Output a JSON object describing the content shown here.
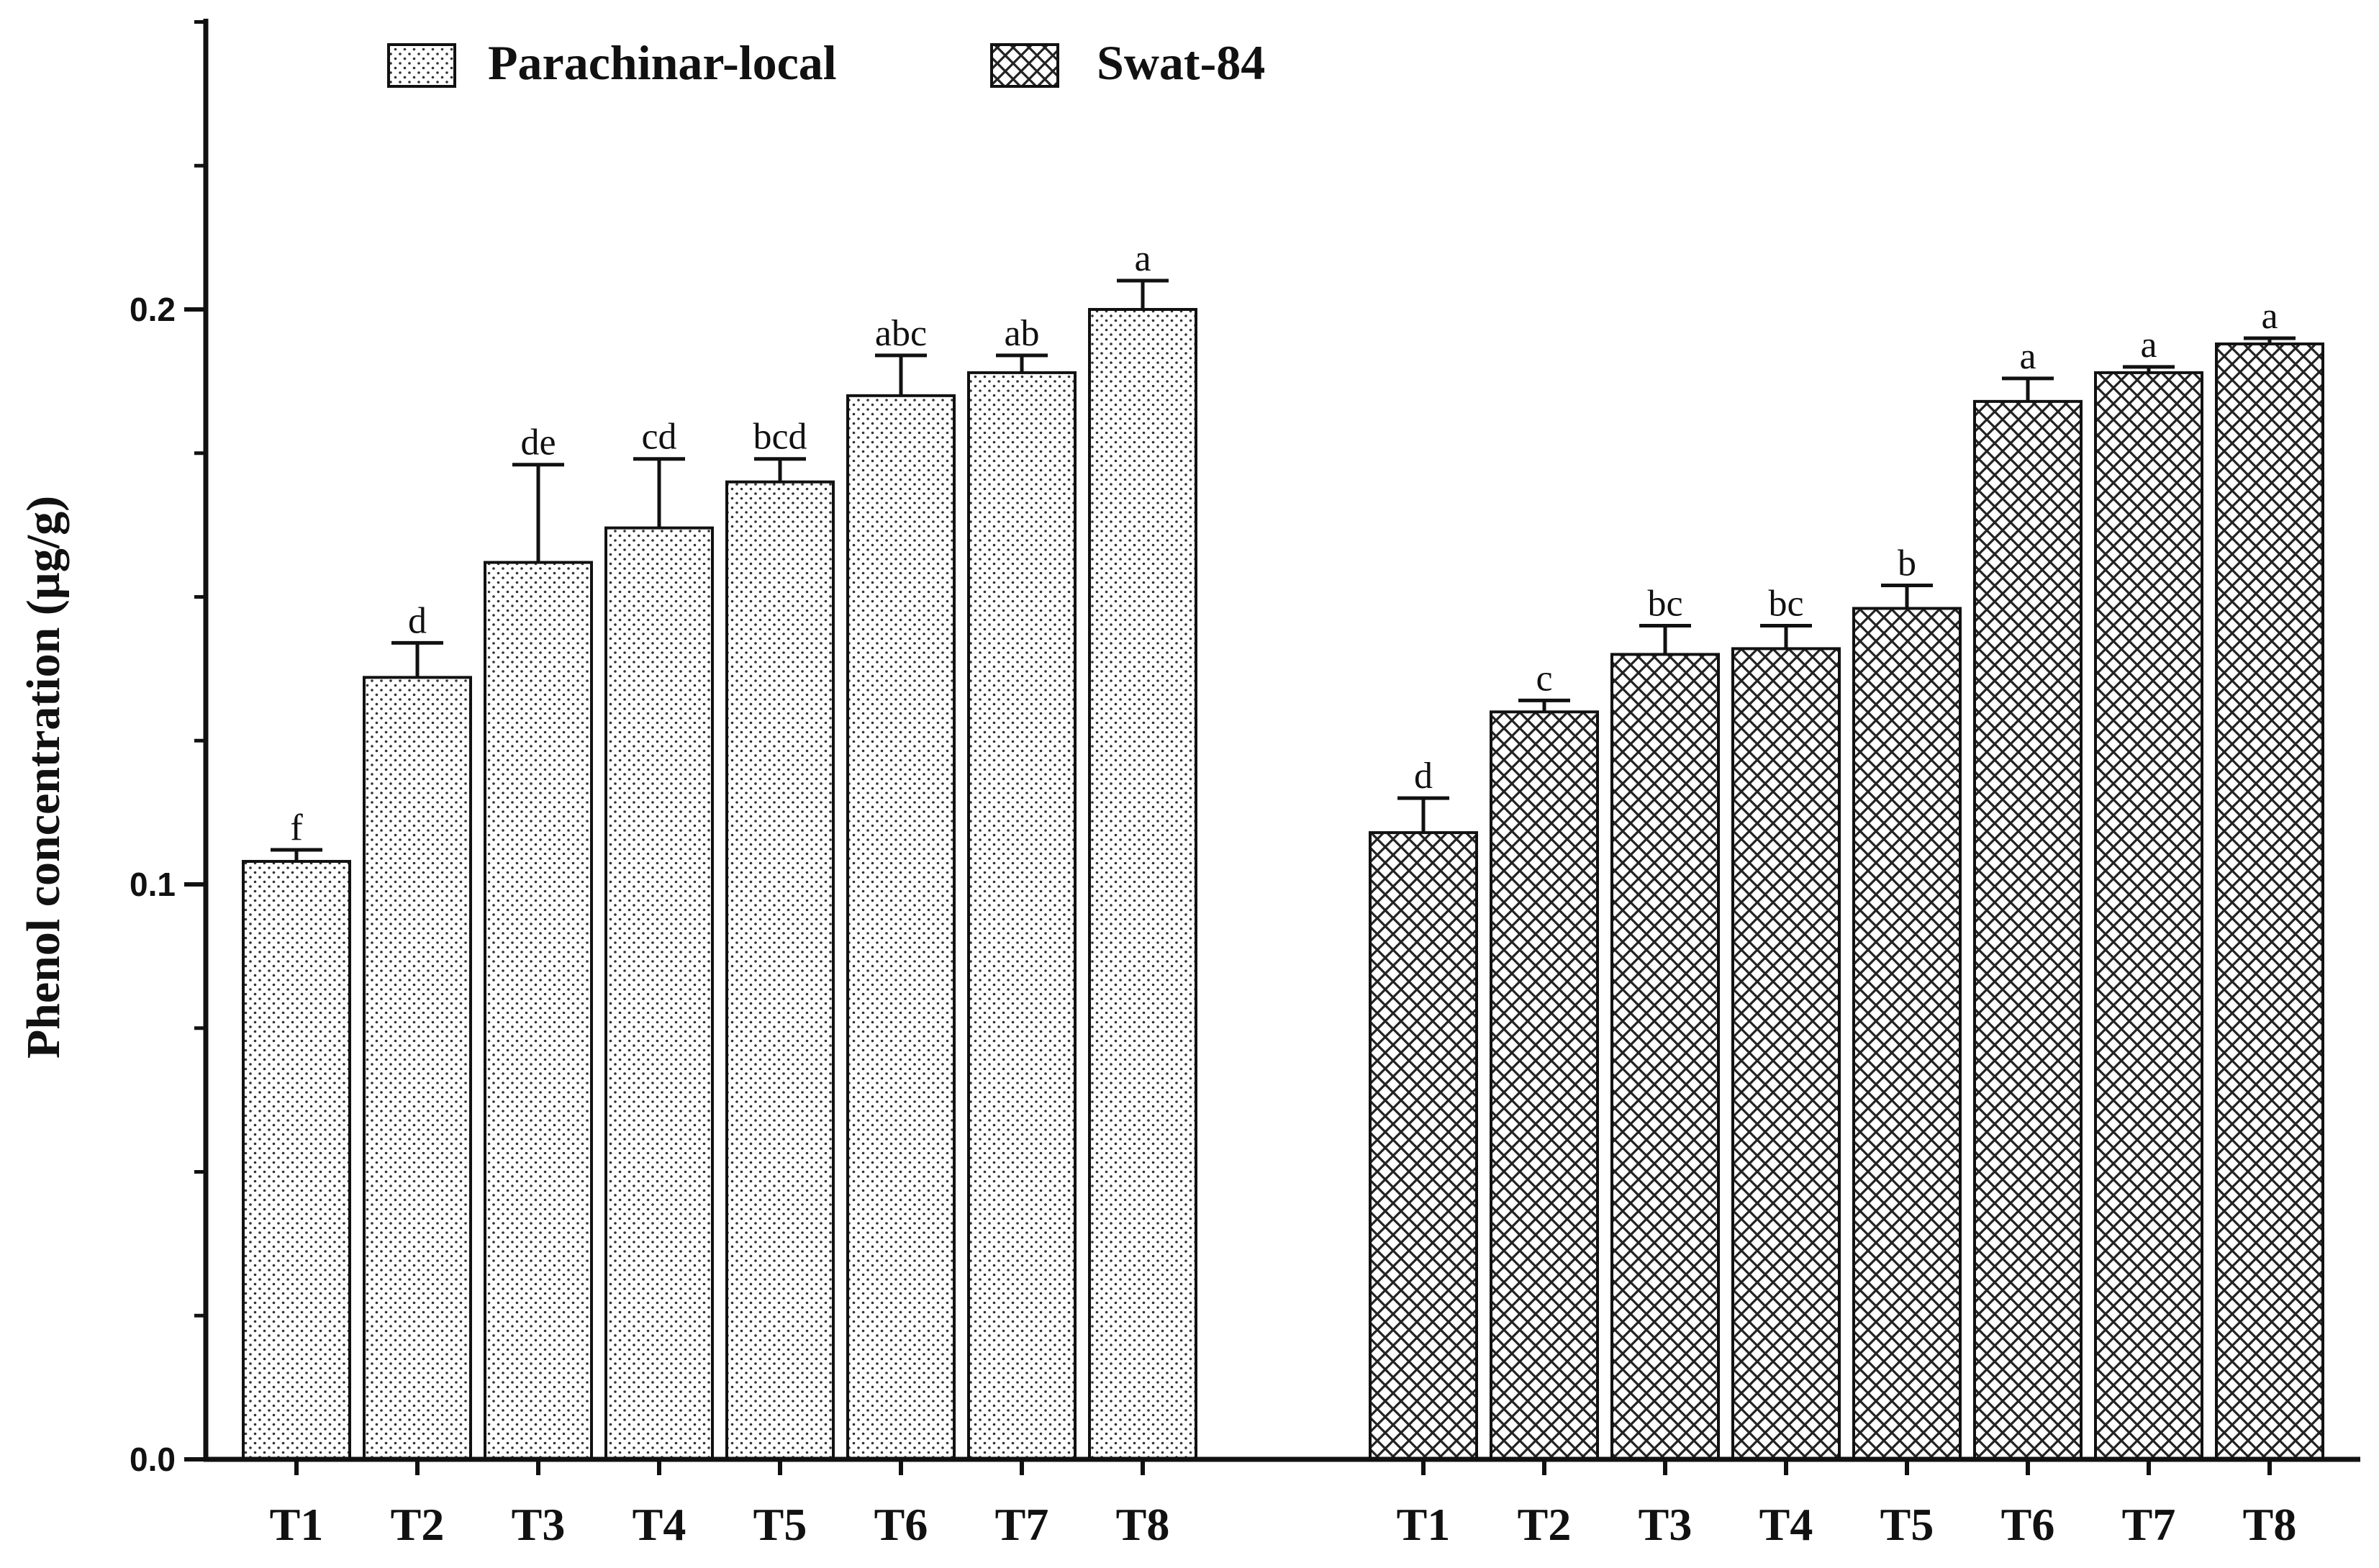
{
  "chart_data": {
    "type": "bar",
    "title": "",
    "xlabel": "",
    "ylabel": "Phenol concentration (µg/g)",
    "ylim": [
      0,
      0.25
    ],
    "yticks": [
      {
        "value": 0.0,
        "label": "0.0"
      },
      {
        "value": 0.1,
        "label": "0.1"
      },
      {
        "value": 0.2,
        "label": "0.2"
      }
    ],
    "minor_tick_step": 0.025,
    "grid": false,
    "legend_position": "top-left",
    "legend": [
      {
        "name": "Parachinar-local",
        "pattern": "dots"
      },
      {
        "name": "Swat-84",
        "pattern": "crosshatch"
      }
    ],
    "groups": [
      {
        "name": "Parachinar-local",
        "pattern": "dots",
        "categories": [
          "T1",
          "T2",
          "T3",
          "T4",
          "T5",
          "T6",
          "T7",
          "T8"
        ],
        "values": [
          0.104,
          0.136,
          0.156,
          0.162,
          0.17,
          0.185,
          0.189,
          0.2
        ],
        "errors": [
          0.002,
          0.006,
          0.017,
          0.012,
          0.004,
          0.007,
          0.003,
          0.005
        ],
        "letters": [
          "f",
          "d",
          "de",
          "cd",
          "bcd",
          "abc",
          "ab",
          "a"
        ]
      },
      {
        "name": "Swat-84",
        "pattern": "crosshatch",
        "categories": [
          "T1",
          "T2",
          "T3",
          "T4",
          "T5",
          "T6",
          "T7",
          "T8"
        ],
        "values": [
          0.109,
          0.13,
          0.14,
          0.141,
          0.148,
          0.184,
          0.189,
          0.194
        ],
        "errors": [
          0.006,
          0.002,
          0.005,
          0.004,
          0.004,
          0.004,
          0.001,
          0.001
        ],
        "letters": [
          "d",
          "c",
          "bc",
          "bc",
          "b",
          "a",
          "a",
          "a"
        ]
      }
    ],
    "colors": {
      "bar_stroke": "#111111",
      "pattern_ink": "#222222",
      "bar_fill": "#ffffff"
    }
  }
}
